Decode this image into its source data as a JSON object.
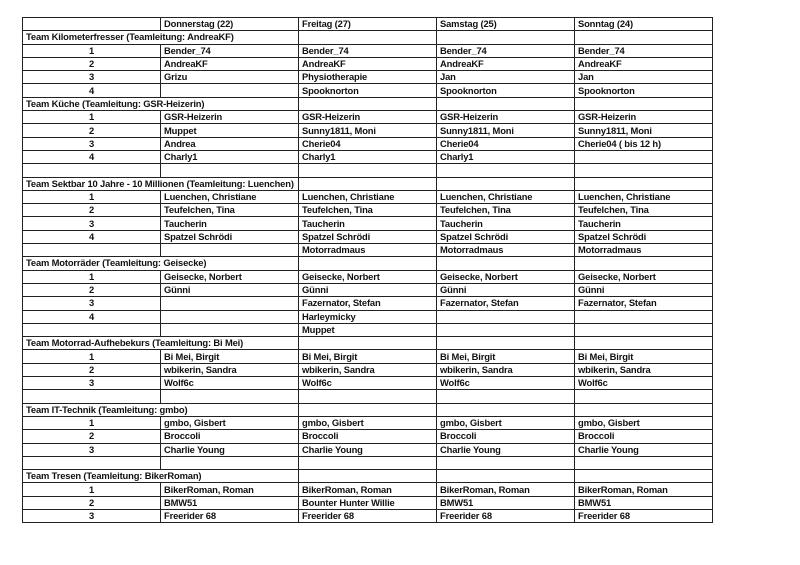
{
  "header": [
    "",
    "Donnerstag  (22)",
    "Freitag  (27)",
    "Samstag  (25)",
    "Sonntag  (24)"
  ],
  "rows": [
    {
      "team": "Team Kilometerfresser (Teamleitung: AndreaKF)"
    },
    {
      "num": "1",
      "cells": [
        "Bender_74",
        "Bender_74",
        "Bender_74",
        "Bender_74"
      ]
    },
    {
      "num": "2",
      "cells": [
        "AndreaKF",
        "AndreaKF",
        "AndreaKF",
        "AndreaKF"
      ]
    },
    {
      "num": "3",
      "cells": [
        "Grizu",
        "Physiotherapie",
        "Jan",
        "Jan"
      ]
    },
    {
      "num": "4",
      "cells": [
        "",
        "Spooknorton",
        "Spooknorton",
        "Spooknorton"
      ]
    },
    {
      "team": "Team Küche (Teamleitung: GSR-Heizerin)"
    },
    {
      "num": "1",
      "cells": [
        "GSR-Heizerin",
        "GSR-Heizerin",
        "GSR-Heizerin",
        "GSR-Heizerin"
      ]
    },
    {
      "num": "2",
      "cells": [
        "Muppet",
        "Sunny1811, Moni",
        "Sunny1811, Moni",
        "Sunny1811, Moni"
      ]
    },
    {
      "num": "3",
      "cells": [
        "Andrea",
        "Cherie04",
        "Cherie04",
        "Cherie04  ( bis 12 h)"
      ]
    },
    {
      "num": "4",
      "cells": [
        "Charly1",
        "Charly1",
        "Charly1",
        ""
      ]
    },
    {
      "num": "",
      "cells": [
        "",
        "",
        "",
        ""
      ]
    },
    {
      "team": "Team Sektbar 10 Jahre - 10 Millionen (Teamleitung: Luenchen)"
    },
    {
      "num": "1",
      "cells": [
        "Luenchen, Christiane",
        "Luenchen, Christiane",
        "Luenchen, Christiane",
        "Luenchen, Christiane"
      ]
    },
    {
      "num": "2",
      "cells": [
        "Teufelchen, Tina",
        "Teufelchen, Tina",
        "Teufelchen, Tina",
        "Teufelchen, Tina"
      ]
    },
    {
      "num": "3",
      "cells": [
        "Taucherin",
        "Taucherin",
        "Taucherin",
        "Taucherin"
      ]
    },
    {
      "num": "4",
      "cells": [
        "Spatzel Schrödi",
        "Spatzel Schrödi",
        "Spatzel Schrödi",
        "Spatzel Schrödi"
      ]
    },
    {
      "num": "",
      "cells": [
        "",
        "Motorradmaus",
        "Motorradmaus",
        "Motorradmaus"
      ]
    },
    {
      "team": "Team Motorräder (Teamleitung: Geisecke)"
    },
    {
      "num": "1",
      "cells": [
        "Geisecke, Norbert",
        "Geisecke, Norbert",
        "Geisecke, Norbert",
        "Geisecke, Norbert"
      ]
    },
    {
      "num": "2",
      "cells": [
        "Günni",
        "Günni",
        "Günni",
        "Günni"
      ]
    },
    {
      "num": "3",
      "cells": [
        "",
        "Fazernator, Stefan",
        "Fazernator, Stefan",
        "Fazernator, Stefan"
      ]
    },
    {
      "num": "4",
      "cells": [
        "",
        "Harleymicky",
        "",
        ""
      ]
    },
    {
      "num": "",
      "cells": [
        "",
        "Muppet",
        "",
        ""
      ]
    },
    {
      "team": "Team Motorrad-Aufhebekurs (Teamleitung: Bi Mei)"
    },
    {
      "num": "1",
      "cells": [
        "Bi Mei, Birgit",
        "Bi Mei, Birgit",
        "Bi Mei, Birgit",
        "Bi Mei, Birgit"
      ]
    },
    {
      "num": "2",
      "cells": [
        "wbikerin, Sandra",
        "wbikerin, Sandra",
        "wbikerin, Sandra",
        "wbikerin, Sandra"
      ]
    },
    {
      "num": "3",
      "cells": [
        "Wolf6c",
        "Wolf6c",
        "Wolf6c",
        "Wolf6c"
      ]
    },
    {
      "num": "",
      "cells": [
        "",
        "",
        "",
        ""
      ]
    },
    {
      "team": "Team IT-Technik (Teamleitung: gmbo)"
    },
    {
      "num": "1",
      "cells": [
        "gmbo, Gisbert",
        "gmbo, Gisbert",
        "gmbo, Gisbert",
        "gmbo, Gisbert"
      ]
    },
    {
      "num": "2",
      "cells": [
        "Broccoli",
        "Broccoli",
        "Broccoli",
        "Broccoli"
      ]
    },
    {
      "num": "3",
      "cells": [
        "Charlie Young",
        "Charlie Young",
        "Charlie Young",
        "Charlie Young"
      ]
    },
    {
      "num": "",
      "cells": [
        "",
        "",
        "",
        ""
      ]
    },
    {
      "team": "Team Tresen (Teamleitung: BikerRoman)"
    },
    {
      "num": "1",
      "cells": [
        "BikerRoman, Roman",
        "BikerRoman, Roman",
        "BikerRoman, Roman",
        "BikerRoman, Roman"
      ]
    },
    {
      "num": "2",
      "cells": [
        "BMW51",
        "Bounter Hunter Willie",
        "BMW51",
        "BMW51"
      ]
    },
    {
      "num": "3",
      "cells": [
        "Freerider 68",
        "Freerider 68",
        "Freerider 68",
        "Freerider 68"
      ]
    }
  ]
}
